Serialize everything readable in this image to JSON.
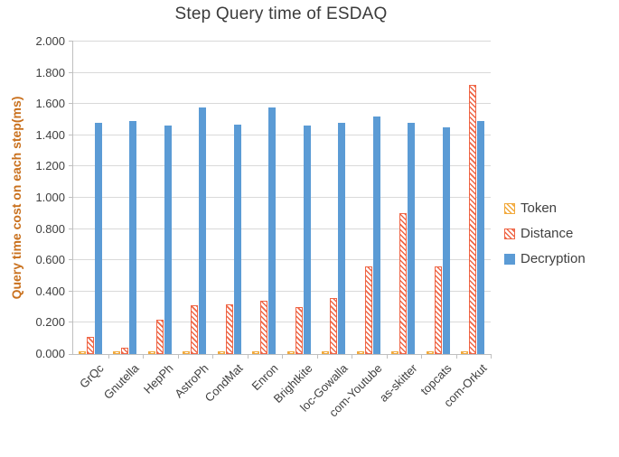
{
  "chart_data": {
    "type": "bar",
    "title": "Step Query time of ESDAQ",
    "ylabel": "Query time cost on each step(ms)",
    "xlabel": "",
    "ylim": [
      0,
      2.0
    ],
    "ytick_labels": [
      "0.000",
      "0.200",
      "0.400",
      "0.600",
      "0.800",
      "1.000",
      "1.200",
      "1.400",
      "1.600",
      "1.800",
      "2.000"
    ],
    "grid": true,
    "legend_position": "right",
    "categories": [
      "GrQc",
      "Gnutella",
      "HepPh",
      "AstroPh",
      "CondMat",
      "Enron",
      "Brightkite",
      "loc-Gowalla",
      "com-Youtube",
      "as-skitter",
      "topcats",
      "com-Orkut"
    ],
    "series": [
      {
        "name": "Token",
        "style": "hatch",
        "color": "#f2a93b",
        "values": [
          0.02,
          0.02,
          0.02,
          0.02,
          0.02,
          0.02,
          0.02,
          0.02,
          0.02,
          0.02,
          0.02,
          0.02
        ]
      },
      {
        "name": "Distance",
        "style": "hatch",
        "color": "#ef6545",
        "values": [
          0.11,
          0.04,
          0.22,
          0.31,
          0.32,
          0.34,
          0.3,
          0.36,
          0.56,
          0.9,
          0.56,
          1.72
        ]
      },
      {
        "name": "Decryption",
        "style": "solid",
        "color": "#5b9bd5",
        "values": [
          1.48,
          1.49,
          1.46,
          1.58,
          1.47,
          1.58,
          1.46,
          1.48,
          1.52,
          1.48,
          1.45,
          1.49
        ]
      }
    ]
  }
}
